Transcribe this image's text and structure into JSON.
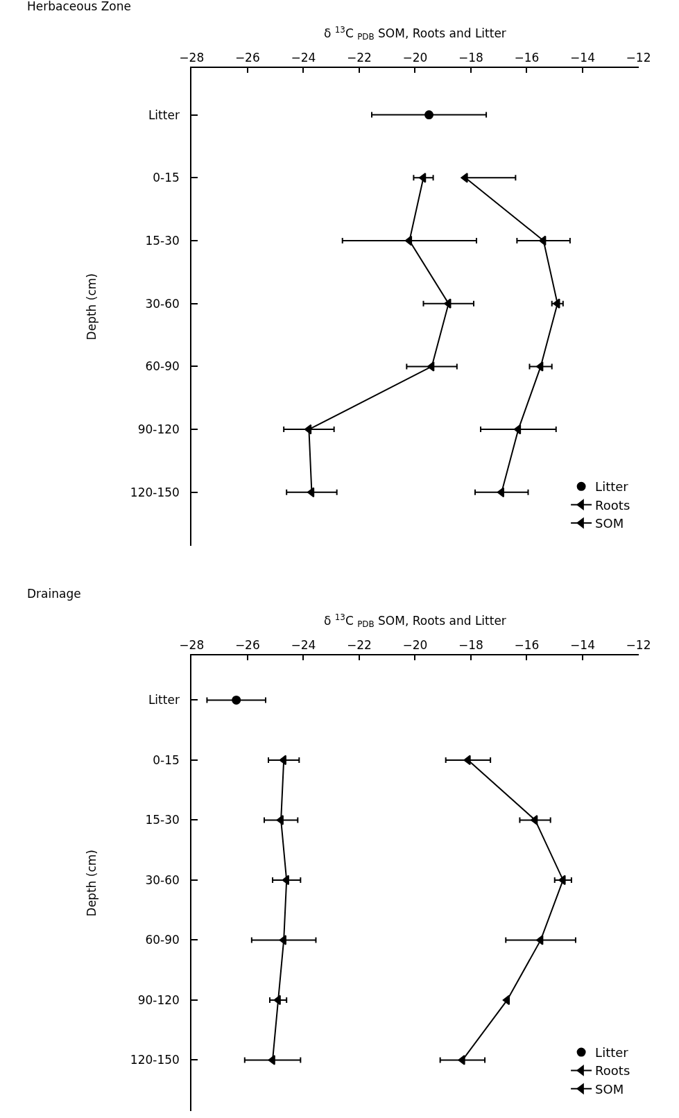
{
  "chart_data": [
    {
      "type": "scatter",
      "orientation": "horizontal",
      "subtitle": "Herbaceous Zone",
      "xlabel": "δ $^{13}$C $_{PDB}$ SOM, Roots and Litter",
      "ylabel": "Depth (cm)",
      "categories": [
        "Litter",
        "0-15",
        "15-30",
        "30-60",
        "60-90",
        "90-120",
        "120-150"
      ],
      "xlim": [
        -28,
        -12
      ],
      "xticks": [
        -28,
        -26,
        -24,
        -22,
        -20,
        -18,
        -16,
        -14,
        -12
      ],
      "legend": "bottom right",
      "series": [
        {
          "name": "Litter",
          "color": "#000000",
          "marker": "circle",
          "values": [
            -19.5,
            null,
            null,
            null,
            null,
            null,
            null
          ],
          "errors": [
            2.05,
            null,
            null,
            null,
            null,
            null,
            null
          ]
        },
        {
          "name": "Roots",
          "type": "line",
          "color": "#000000",
          "marker": "triangle",
          "line_style": "solid",
          "values": [
            null,
            -19.7,
            -20.2,
            -18.8,
            -19.4,
            -23.8,
            -23.7
          ],
          "errors": [
            null,
            0.35,
            2.4,
            0.9,
            0.9,
            0.9,
            0.9
          ]
        },
        {
          "name": "SOM",
          "type": "line",
          "color": "#000000",
          "marker": "triangle",
          "line_style": "solid",
          "values": [
            null,
            -18.2,
            -15.4,
            -14.9,
            -15.5,
            -16.3,
            -16.9
          ],
          "errors": [
            null,
            [
              -18.2,
              -16.4
            ],
            0.95,
            0.2,
            0.4,
            1.35,
            0.95
          ]
        }
      ]
    },
    {
      "type": "scatter",
      "orientation": "horizontal",
      "subtitle": "Drainage",
      "xlabel": "δ $^{13}$C $_{PDB}$ SOM, Roots and Litter",
      "ylabel": "Depth (cm)",
      "categories": [
        "Litter",
        "0-15",
        "15-30",
        "30-60",
        "60-90",
        "90-120",
        "120-150"
      ],
      "xlim": [
        -28,
        -12
      ],
      "xticks": [
        -28,
        -26,
        -24,
        -22,
        -20,
        -18,
        -16,
        -14,
        -12
      ],
      "legend": "bottom right",
      "series": [
        {
          "name": "Litter",
          "color": "#000000",
          "marker": "circle",
          "values": [
            -26.4,
            null,
            null,
            null,
            null,
            null,
            null
          ],
          "errors": [
            1.05,
            null,
            null,
            null,
            null,
            null,
            null
          ]
        },
        {
          "name": "Roots",
          "type": "line",
          "color": "#000000",
          "marker": "triangle",
          "line_style": "solid",
          "values": [
            null,
            -24.7,
            -24.8,
            -24.6,
            -24.7,
            -24.9,
            -25.1
          ],
          "errors": [
            null,
            0.55,
            0.6,
            0.5,
            1.15,
            0.3,
            1.0
          ]
        },
        {
          "name": "SOM",
          "type": "line",
          "color": "#000000",
          "marker": "triangle",
          "line_style": "solid",
          "values": [
            null,
            -18.1,
            -15.7,
            -14.7,
            -15.5,
            -16.7,
            -18.3
          ],
          "errors": [
            null,
            0.8,
            0.55,
            0.3,
            1.25,
            null,
            0.8
          ]
        }
      ]
    }
  ]
}
